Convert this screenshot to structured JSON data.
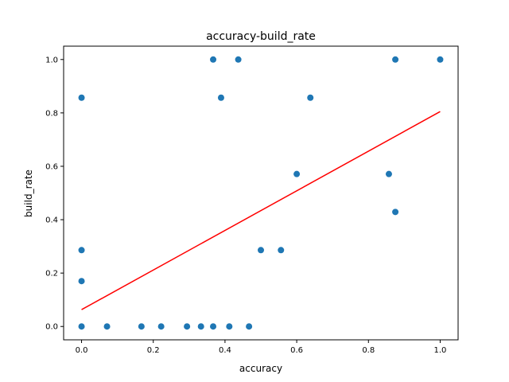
{
  "chart_data": {
    "type": "scatter",
    "title": "accuracy-build_rate",
    "xlabel": "accuracy",
    "ylabel": "build_rate",
    "xlim": [
      -0.05,
      1.05
    ],
    "ylim": [
      -0.05,
      1.05
    ],
    "xticks": [
      0.0,
      0.2,
      0.4,
      0.6,
      0.8,
      1.0
    ],
    "xtick_labels": [
      "0.0",
      "0.2",
      "0.4",
      "0.6",
      "0.8",
      "1.0"
    ],
    "yticks": [
      0.0,
      0.2,
      0.4,
      0.6,
      0.8,
      1.0
    ],
    "ytick_labels": [
      "0.0",
      "0.2",
      "0.4",
      "0.6",
      "0.8",
      "1.0"
    ],
    "grid": false,
    "series": [
      {
        "kind": "points",
        "color": "#1f77b4",
        "points": [
          [
            0.0,
            0.0
          ],
          [
            0.0,
            0.17
          ],
          [
            0.0,
            0.286
          ],
          [
            0.0,
            0.857
          ],
          [
            0.071,
            0.0
          ],
          [
            0.167,
            0.0
          ],
          [
            0.222,
            0.0
          ],
          [
            0.294,
            0.0
          ],
          [
            0.333,
            0.0
          ],
          [
            0.367,
            0.0
          ],
          [
            0.412,
            0.0
          ],
          [
            0.467,
            0.0
          ],
          [
            0.367,
            1.0
          ],
          [
            0.389,
            0.857
          ],
          [
            0.437,
            1.0
          ],
          [
            0.5,
            0.286
          ],
          [
            0.556,
            0.286
          ],
          [
            0.6,
            0.571
          ],
          [
            0.638,
            0.857
          ],
          [
            0.857,
            0.571
          ],
          [
            0.875,
            0.429
          ],
          [
            0.875,
            1.0
          ],
          [
            1.0,
            1.0
          ]
        ]
      },
      {
        "kind": "fit-line",
        "color": "#ff0000",
        "x": [
          0.0,
          1.0
        ],
        "y": [
          0.063,
          0.805
        ]
      }
    ]
  }
}
